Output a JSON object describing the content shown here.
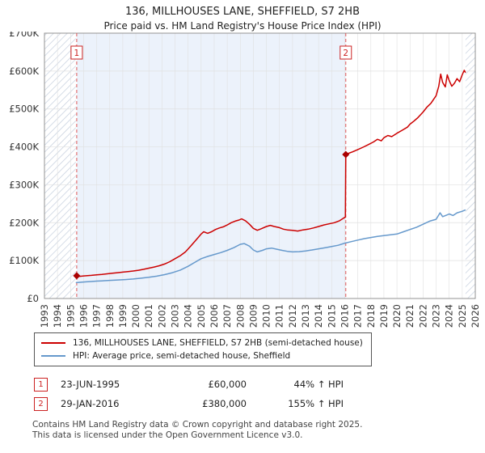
{
  "title": "136, MILLHOUSES LANE, SHEFFIELD, S7 2HB",
  "subtitle": "Price paid vs. HM Land Registry's House Price Index (HPI)",
  "chart_data": {
    "type": "line",
    "title": "136, MILLHOUSES LANE, SHEFFIELD, S7 2HB",
    "xlabel": "",
    "ylabel": "",
    "xlim": [
      1993,
      2026
    ],
    "ylim": [
      0,
      700000
    ],
    "grid": true,
    "legend_position": "bottom",
    "x_ticks": [
      1993,
      1994,
      1995,
      1996,
      1997,
      1998,
      1999,
      2000,
      2001,
      2002,
      2003,
      2004,
      2005,
      2006,
      2007,
      2008,
      2009,
      2010,
      2011,
      2012,
      2013,
      2014,
      2015,
      2016,
      2017,
      2018,
      2019,
      2020,
      2021,
      2022,
      2023,
      2024,
      2025,
      2026
    ],
    "y_ticks": [
      0,
      100000,
      200000,
      300000,
      400000,
      500000,
      600000,
      700000
    ],
    "y_tick_labels": [
      "£0",
      "£100K",
      "£200K",
      "£300K",
      "£400K",
      "£500K",
      "£600K",
      "£700K"
    ],
    "colors": {
      "property": "#cc0000",
      "hpi": "#6699cc",
      "marker": "#aa0000",
      "dashed": "#dd5555",
      "shade": "#ecf2fb",
      "hatch": "#c4cedd",
      "grid": "#e0e0e0",
      "frame": "#8a8a8a"
    },
    "shaded_span": [
      1995.47,
      2016.08
    ],
    "hatched_spans": [
      [
        1993,
        1995.4
      ],
      [
        2025.25,
        2026
      ]
    ],
    "sale_markers": [
      {
        "label": "1",
        "x": 1995.47,
        "y": 60000
      },
      {
        "label": "2",
        "x": 2016.08,
        "y": 380000
      }
    ],
    "series": [
      {
        "name": "136, MILLHOUSES LANE, SHEFFIELD, S7 2HB (semi-detached house)",
        "color": "#cc0000",
        "points": [
          [
            1995.47,
            60000
          ],
          [
            1995.7,
            58500
          ],
          [
            1996.0,
            59500
          ],
          [
            1996.3,
            60500
          ],
          [
            1996.6,
            61000
          ],
          [
            1997.0,
            62500
          ],
          [
            1997.4,
            63500
          ],
          [
            1997.8,
            65000
          ],
          [
            1998.2,
            66500
          ],
          [
            1998.6,
            68000
          ],
          [
            1999.0,
            69500
          ],
          [
            1999.4,
            71000
          ],
          [
            1999.8,
            72500
          ],
          [
            2000.2,
            74500
          ],
          [
            2000.6,
            77000
          ],
          [
            2001.0,
            80000
          ],
          [
            2001.4,
            83000
          ],
          [
            2001.8,
            86500
          ],
          [
            2002.2,
            91000
          ],
          [
            2002.6,
            97000
          ],
          [
            2003.0,
            105000
          ],
          [
            2003.4,
            113000
          ],
          [
            2003.8,
            123000
          ],
          [
            2004.2,
            138000
          ],
          [
            2004.5,
            150000
          ],
          [
            2004.8,
            162000
          ],
          [
            2005.0,
            170000
          ],
          [
            2005.2,
            176000
          ],
          [
            2005.5,
            172000
          ],
          [
            2005.8,
            176000
          ],
          [
            2006.1,
            182000
          ],
          [
            2006.4,
            186000
          ],
          [
            2006.7,
            189000
          ],
          [
            2007.0,
            194000
          ],
          [
            2007.3,
            200000
          ],
          [
            2007.6,
            204000
          ],
          [
            2007.9,
            207000
          ],
          [
            2008.1,
            210000
          ],
          [
            2008.4,
            205000
          ],
          [
            2008.7,
            196000
          ],
          [
            2009.0,
            185000
          ],
          [
            2009.3,
            180000
          ],
          [
            2009.6,
            184000
          ],
          [
            2010.0,
            190000
          ],
          [
            2010.3,
            193000
          ],
          [
            2010.6,
            190000
          ],
          [
            2011.0,
            187000
          ],
          [
            2011.3,
            183000
          ],
          [
            2011.6,
            181000
          ],
          [
            2012.0,
            180000
          ],
          [
            2012.4,
            178000
          ],
          [
            2012.8,
            181000
          ],
          [
            2013.2,
            183000
          ],
          [
            2013.6,
            186000
          ],
          [
            2014.0,
            190000
          ],
          [
            2014.4,
            194000
          ],
          [
            2014.8,
            197000
          ],
          [
            2015.2,
            200000
          ],
          [
            2015.6,
            205000
          ],
          [
            2015.9,
            212000
          ],
          [
            2016.05,
            215000
          ],
          [
            2016.08,
            380000
          ],
          [
            2016.3,
            383000
          ],
          [
            2016.6,
            387000
          ],
          [
            2017.0,
            393000
          ],
          [
            2017.4,
            399000
          ],
          [
            2017.8,
            406000
          ],
          [
            2018.2,
            413000
          ],
          [
            2018.5,
            420000
          ],
          [
            2018.8,
            416000
          ],
          [
            2019.0,
            424000
          ],
          [
            2019.3,
            430000
          ],
          [
            2019.6,
            427000
          ],
          [
            2020.0,
            436000
          ],
          [
            2020.4,
            444000
          ],
          [
            2020.8,
            452000
          ],
          [
            2021.0,
            460000
          ],
          [
            2021.3,
            468000
          ],
          [
            2021.6,
            477000
          ],
          [
            2022.0,
            492000
          ],
          [
            2022.3,
            505000
          ],
          [
            2022.6,
            515000
          ],
          [
            2023.0,
            535000
          ],
          [
            2023.2,
            560000
          ],
          [
            2023.35,
            592000
          ],
          [
            2023.5,
            570000
          ],
          [
            2023.7,
            558000
          ],
          [
            2023.85,
            590000
          ],
          [
            2024.0,
            575000
          ],
          [
            2024.2,
            560000
          ],
          [
            2024.4,
            568000
          ],
          [
            2024.6,
            580000
          ],
          [
            2024.8,
            572000
          ],
          [
            2025.0,
            590000
          ],
          [
            2025.15,
            602000
          ],
          [
            2025.25,
            596000
          ]
        ]
      },
      {
        "name": "HPI: Average price, semi-detached house, Sheffield",
        "color": "#6699cc",
        "points": [
          [
            1995.4,
            42000
          ],
          [
            1995.47,
            41800
          ],
          [
            1995.8,
            43000
          ],
          [
            1996.2,
            44000
          ],
          [
            1996.6,
            44800
          ],
          [
            1997.0,
            45800
          ],
          [
            1997.4,
            46600
          ],
          [
            1998.0,
            47800
          ],
          [
            1998.6,
            48800
          ],
          [
            1999.2,
            50000
          ],
          [
            1999.8,
            51500
          ],
          [
            2000.4,
            53500
          ],
          [
            2001.0,
            56000
          ],
          [
            2001.6,
            59000
          ],
          [
            2002.2,
            63000
          ],
          [
            2002.8,
            68000
          ],
          [
            2003.4,
            75000
          ],
          [
            2004.0,
            85000
          ],
          [
            2004.5,
            95000
          ],
          [
            2005.0,
            105000
          ],
          [
            2005.5,
            111000
          ],
          [
            2006.0,
            116000
          ],
          [
            2006.5,
            121000
          ],
          [
            2007.0,
            127000
          ],
          [
            2007.5,
            134000
          ],
          [
            2008.0,
            143000
          ],
          [
            2008.3,
            145000
          ],
          [
            2008.7,
            138000
          ],
          [
            2009.0,
            128000
          ],
          [
            2009.3,
            123000
          ],
          [
            2009.7,
            127000
          ],
          [
            2010.0,
            131000
          ],
          [
            2010.4,
            133000
          ],
          [
            2010.8,
            130000
          ],
          [
            2011.2,
            127000
          ],
          [
            2011.6,
            124500
          ],
          [
            2012.0,
            123000
          ],
          [
            2012.5,
            123500
          ],
          [
            2013.0,
            125500
          ],
          [
            2013.5,
            128000
          ],
          [
            2014.0,
            131000
          ],
          [
            2014.5,
            134000
          ],
          [
            2015.0,
            137000
          ],
          [
            2015.5,
            140500
          ],
          [
            2016.0,
            146000
          ],
          [
            2016.5,
            150000
          ],
          [
            2017.0,
            154000
          ],
          [
            2017.5,
            158000
          ],
          [
            2018.0,
            161000
          ],
          [
            2018.5,
            164000
          ],
          [
            2019.0,
            166000
          ],
          [
            2019.5,
            168000
          ],
          [
            2020.0,
            170000
          ],
          [
            2020.5,
            176000
          ],
          [
            2021.0,
            182000
          ],
          [
            2021.5,
            188000
          ],
          [
            2022.0,
            196000
          ],
          [
            2022.5,
            204000
          ],
          [
            2023.0,
            209000
          ],
          [
            2023.3,
            226000
          ],
          [
            2023.5,
            216000
          ],
          [
            2023.8,
            220000
          ],
          [
            2024.0,
            223000
          ],
          [
            2024.3,
            219000
          ],
          [
            2024.6,
            226000
          ],
          [
            2025.0,
            230000
          ],
          [
            2025.25,
            234000
          ]
        ]
      }
    ]
  },
  "legend": [
    {
      "label": "136, MILLHOUSES LANE, SHEFFIELD, S7 2HB (semi-detached house)",
      "color": "#cc0000"
    },
    {
      "label": "HPI: Average price, semi-detached house, Sheffield",
      "color": "#6699cc"
    }
  ],
  "annotations": [
    {
      "num": "1",
      "date": "23-JUN-1995",
      "price": "£60,000",
      "hpi": "44% ↑ HPI"
    },
    {
      "num": "2",
      "date": "29-JAN-2016",
      "price": "£380,000",
      "hpi": "155% ↑ HPI"
    }
  ],
  "footer": {
    "line1": "Contains HM Land Registry data © Crown copyright and database right 2025.",
    "line2": "This data is licensed under the Open Government Licence v3.0."
  }
}
